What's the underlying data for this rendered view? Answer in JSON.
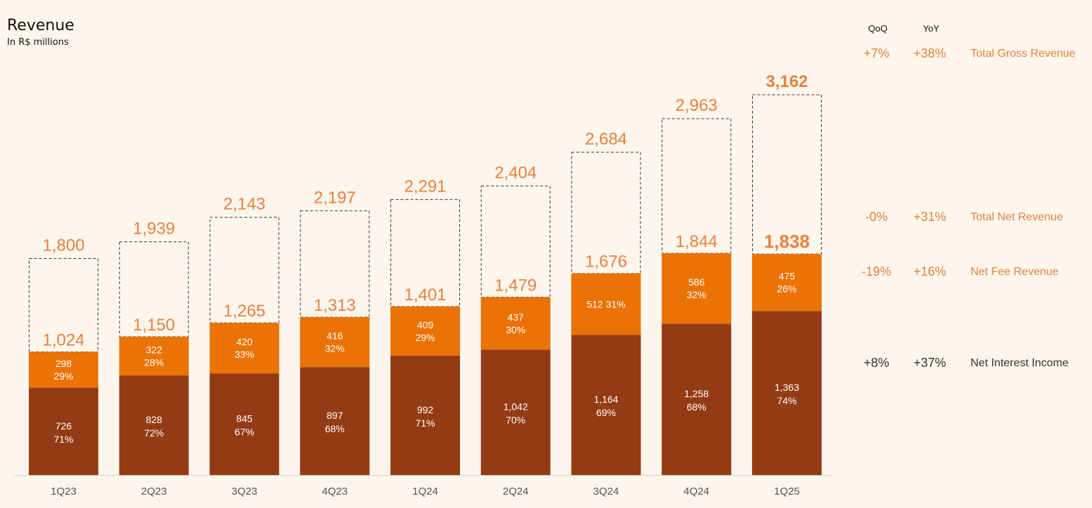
{
  "title": "Revenue",
  "subtitle": "In R$ millions",
  "colors": {
    "net_interest": "#933b14",
    "net_fee": "#eb7205",
    "gross_text": "#e8813e",
    "background": "#fcf6ec",
    "dashed": "#333333",
    "axis_text": "#555555"
  },
  "side_panel": {
    "qoq_header": "QoQ",
    "yoy_header": "YoY",
    "rows": [
      {
        "qoq": "+7%",
        "yoy": "+38%",
        "label": "Total Gross Revenue",
        "color": "#e8813e"
      },
      {
        "qoq": "-0%",
        "yoy": "+31%",
        "label": "Total Net Revenue",
        "color": "#e8813e"
      },
      {
        "qoq": "-19%",
        "yoy": "+16%",
        "label": "Net Fee Revenue",
        "color": "#e8813e"
      },
      {
        "qoq": "+8%",
        "yoy": "+37%",
        "label": "Net Interest Income",
        "color": "#333333"
      }
    ]
  },
  "chart_data": {
    "type": "bar",
    "stacked": true,
    "categories": [
      "1Q23",
      "2Q23",
      "3Q23",
      "4Q23",
      "1Q24",
      "2Q24",
      "3Q24",
      "4Q24",
      "1Q25"
    ],
    "series": [
      {
        "name": "Net Interest Income",
        "values": [
          726,
          828,
          845,
          897,
          992,
          1042,
          1164,
          1258,
          1363
        ],
        "labels": [
          "726\n71%",
          "828\n72%",
          "845\n67%",
          "897\n68%",
          "992\n71%",
          "1,042\n70%",
          "1,164\n69%",
          "1,258\n68%",
          "1,363\n74%"
        ]
      },
      {
        "name": "Net Fee Revenue",
        "values": [
          298,
          322,
          420,
          416,
          409,
          437,
          512,
          586,
          475
        ],
        "labels": [
          "298\n29%",
          "322\n28%",
          "420\n33%",
          "416\n32%",
          "409\n29%",
          "437\n30%",
          "512 31%",
          "586\n32%",
          "475\n26%"
        ]
      }
    ],
    "total_net_revenue": [
      1024,
      1150,
      1265,
      1313,
      1401,
      1479,
      1676,
      1844,
      1838
    ],
    "total_net_revenue_labels": [
      "1,024",
      "1,150",
      "1,265",
      "1,313",
      "1,401",
      "1,479",
      "1,676",
      "1,844",
      "1,838"
    ],
    "total_gross_revenue": [
      1800,
      1939,
      2143,
      2197,
      2291,
      2404,
      2684,
      2963,
      3162
    ],
    "total_gross_revenue_labels": [
      "1,800",
      "1,939",
      "2,143",
      "2,197",
      "2,291",
      "2,404",
      "2,684",
      "2,963",
      "3,162"
    ],
    "ylim": [
      0,
      3400
    ],
    "grid": false
  }
}
